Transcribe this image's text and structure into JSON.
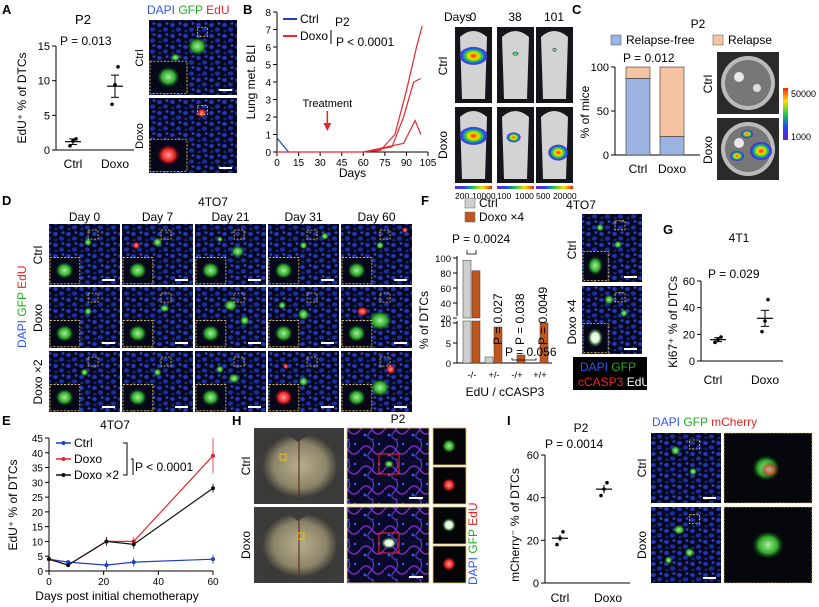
{
  "colors": {
    "ctrl": "#1f3fbf",
    "doxo": "#e8262b",
    "doxo2": "#111111",
    "relapse_free": "#9ab3e0",
    "relapse": "#f6c4a2",
    "ctrl_bar_f": "#cfcfcf",
    "doxo_bar_f": "#c0561d",
    "dapi": "#3355ff",
    "gfp": "#22aa22",
    "edu": "#ee2222"
  },
  "panelA": {
    "letter": "A",
    "title": "P2",
    "pval": "P = 0.013",
    "ylabel": "EdU⁺ % of DTCs",
    "stain": [
      "DAPI",
      "GFP",
      "EdU"
    ],
    "row_labels": [
      "Ctrl",
      "Doxo"
    ],
    "chart_data": {
      "type": "scatter",
      "categories": [
        "Ctrl",
        "Doxo"
      ],
      "ylim": [
        0,
        15
      ],
      "yticks": [
        0,
        5,
        10,
        15
      ],
      "points": {
        "Ctrl": [
          0.6,
          1.3,
          1.6
        ],
        "Doxo": [
          6.6,
          9.4,
          12.0
        ]
      },
      "means": [
        1.2,
        9.2
      ],
      "sem": [
        0.4,
        1.6
      ]
    }
  },
  "panelB": {
    "letter": "B",
    "title": "P2",
    "pval": "P < 0.0001",
    "legend": [
      "Ctrl",
      "Doxo"
    ],
    "ylabel": "Lung met. BLI",
    "xlabel": "Days",
    "annotation": "Treatment",
    "day_labels": [
      "0",
      "38",
      "101"
    ],
    "days_label": "Days",
    "row_labels": [
      "Ctrl",
      "Doxo"
    ],
    "scale_labels": [
      "200",
      "10000",
      "100",
      "1000",
      "500",
      "20000"
    ],
    "chart_data": {
      "type": "line",
      "xlim": [
        0,
        105
      ],
      "ylim": [
        0,
        8
      ],
      "xticks": [
        0,
        15,
        30,
        45,
        60,
        75,
        90,
        105
      ],
      "yticks": [
        0,
        1,
        2,
        3,
        4,
        5,
        6,
        7,
        8
      ],
      "annotation_x": 35,
      "series": [
        {
          "name": "Ctrl",
          "x": [
            0,
            8
          ],
          "y": [
            0.8,
            0
          ]
        },
        {
          "name": "Doxo",
          "x": [
            0,
            60,
            72,
            82,
            90,
            97,
            101
          ],
          "y": [
            0,
            0,
            0.1,
            1.0,
            3.5,
            6.0,
            7.2
          ]
        },
        {
          "name": "Doxo",
          "x": [
            60,
            80,
            88,
            95,
            100
          ],
          "y": [
            0,
            0.3,
            2.0,
            4.0,
            4.2
          ]
        },
        {
          "name": "Doxo",
          "x": [
            60,
            88,
            96,
            100
          ],
          "y": [
            0,
            0.5,
            1.8,
            1.0
          ]
        }
      ]
    }
  },
  "panelC": {
    "letter": "C",
    "title": "P2",
    "pval": "P = 0.012",
    "legend": [
      "Relapse-free",
      "Relapse"
    ],
    "ylabel": "% of mice",
    "row_labels": [
      "Ctrl",
      "Doxo"
    ],
    "scale_labels": [
      "50000",
      "1000"
    ],
    "chart_data": {
      "type": "bar",
      "categories": [
        "Ctrl",
        "Doxo"
      ],
      "ylim": [
        0,
        100
      ],
      "yticks": [
        0,
        50,
        100
      ],
      "series": [
        {
          "name": "Relapse-free",
          "values": [
            87,
            21
          ]
        },
        {
          "name": "Relapse",
          "values": [
            13,
            79
          ]
        }
      ]
    }
  },
  "panelD": {
    "letter": "D",
    "title": "4TO7",
    "columns": [
      "Day 0",
      "Day 7",
      "Day 21",
      "Day 31",
      "Day 60"
    ],
    "rows": [
      "Ctrl",
      "Doxo",
      "Doxo ×2"
    ],
    "stain": [
      "DAPI",
      "GFP",
      "EdU"
    ]
  },
  "panelE": {
    "letter": "E",
    "title": "4TO7",
    "pval": "P < 0.0001",
    "legend": [
      "Ctrl",
      "Doxo",
      "Doxo ×2"
    ],
    "ylabel": "EdU⁺ % of DTCs",
    "xlabel": "Days post initial chemotherapy",
    "chart_data": {
      "type": "line",
      "xlim": [
        0,
        60
      ],
      "ylim": [
        0,
        45
      ],
      "xticks": [
        0,
        20,
        40,
        60
      ],
      "yticks": [
        0,
        5,
        10,
        15,
        20,
        25,
        30,
        35,
        40,
        45
      ],
      "series": [
        {
          "name": "Ctrl",
          "x": [
            0,
            7,
            21,
            31,
            60
          ],
          "y": [
            4,
            3,
            2,
            3,
            4
          ]
        },
        {
          "name": "Doxo",
          "x": [
            0,
            7,
            21,
            31,
            60
          ],
          "y": [
            4,
            2,
            10,
            10,
            39
          ]
        },
        {
          "name": "Doxo ×2",
          "x": [
            0,
            7,
            21,
            31,
            60
          ],
          "y": [
            4,
            2,
            10,
            9,
            28
          ]
        }
      ]
    }
  },
  "panelF": {
    "letter": "F",
    "title": "4TO7",
    "legend": [
      "Ctrl",
      "Doxo ×4"
    ],
    "ylabel": "% of DTCs",
    "xlabel": "EdU / cCASP3",
    "pvals": [
      "P = 0.0024",
      "P = 0.027",
      "P = 0.038",
      "P = 0.0049",
      "P = 0.056"
    ],
    "row_labels": [
      "Ctrl",
      "Doxo ×4"
    ],
    "stain": [
      "DAPI",
      "GFP",
      "cCASP3",
      "EdU"
    ],
    "chart_data": {
      "type": "bar",
      "categories": [
        "-/-",
        "+/-",
        "-/+",
        "+/+"
      ],
      "yticks": [
        0,
        5,
        10,
        20,
        40,
        60,
        80,
        100
      ],
      "series": [
        {
          "name": "Ctrl",
          "values": [
            97,
            1.5,
            0,
            0
          ]
        },
        {
          "name": "Doxo ×4",
          "values": [
            83,
            9,
            2,
            10
          ]
        }
      ]
    }
  },
  "panelG": {
    "letter": "G",
    "title": "4T1",
    "pval": "P = 0.029",
    "ylabel": "Ki67⁺ % of DTCs",
    "chart_data": {
      "type": "scatter",
      "categories": [
        "Ctrl",
        "Doxo"
      ],
      "ylim": [
        0,
        60
      ],
      "yticks": [
        0,
        20,
        40,
        60
      ],
      "points": {
        "Ctrl": [
          14,
          16,
          18
        ],
        "Doxo": [
          22,
          30,
          46
        ]
      },
      "means": [
        16,
        32
      ],
      "sem": [
        1.5,
        6
      ]
    }
  },
  "panelH": {
    "letter": "H",
    "title": "P2",
    "row_labels": [
      "Ctrl",
      "Doxo"
    ],
    "stain": [
      "DAPI",
      "GFP",
      "EdU"
    ]
  },
  "panelI": {
    "letter": "I",
    "title": "P2",
    "pval": "P = 0.0014",
    "ylabel": "mCherry⁻ % of DTCs",
    "row_labels": [
      "Ctrl",
      "Doxo"
    ],
    "stain": [
      "DAPI",
      "GFP",
      "mCherry"
    ],
    "chart_data": {
      "type": "scatter",
      "categories": [
        "Ctrl",
        "Doxo"
      ],
      "ylim": [
        0,
        60
      ],
      "yticks": [
        0,
        20,
        40,
        60
      ],
      "points": {
        "Ctrl": [
          18,
          21,
          24
        ],
        "Doxo": [
          41,
          44,
          47
        ]
      },
      "means": [
        21,
        44
      ],
      "sem": [
        1.5,
        2
      ]
    }
  }
}
